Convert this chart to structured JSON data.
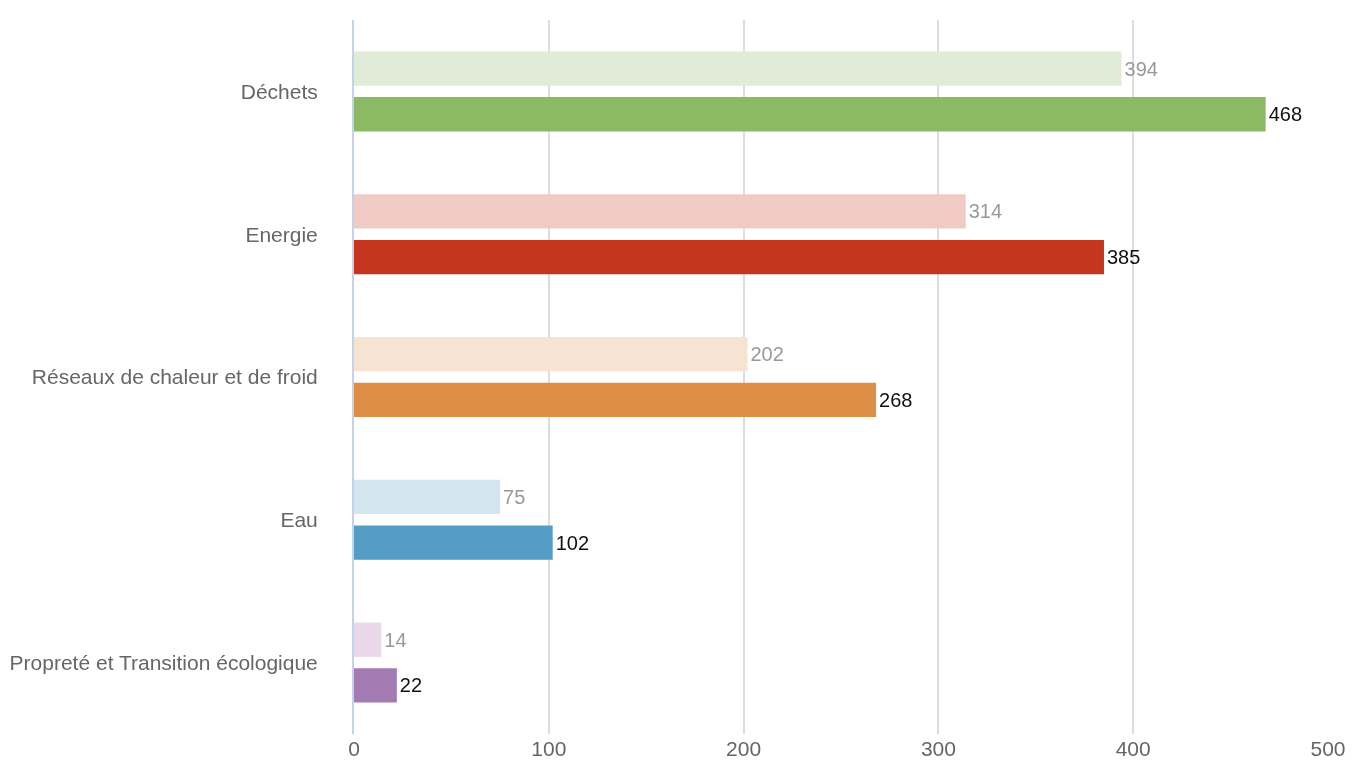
{
  "chart_data": {
    "type": "bar",
    "orientation": "horizontal",
    "categories": [
      "Déchets",
      "Energie",
      "Réseaux de chaleur et de froid",
      "Eau",
      "Propreté et Transition écologique"
    ],
    "series": [
      {
        "colors": [
          "#e0ecd7",
          "#f0cbc6",
          "#f7e3d2",
          "#d4e5ef",
          "#e8d8e8"
        ],
        "values": [
          394,
          314,
          202,
          75,
          14
        ]
      },
      {
        "colors": [
          "#8cb963",
          "#c5361e",
          "#dc8f45",
          "#569dc6",
          "#a57bb3"
        ],
        "values": [
          468,
          385,
          268,
          102,
          22
        ]
      }
    ],
    "xlim": [
      0,
      500
    ],
    "xticks": [
      0,
      100,
      200,
      300,
      400,
      500
    ],
    "grid": "x",
    "data_labels": true
  }
}
